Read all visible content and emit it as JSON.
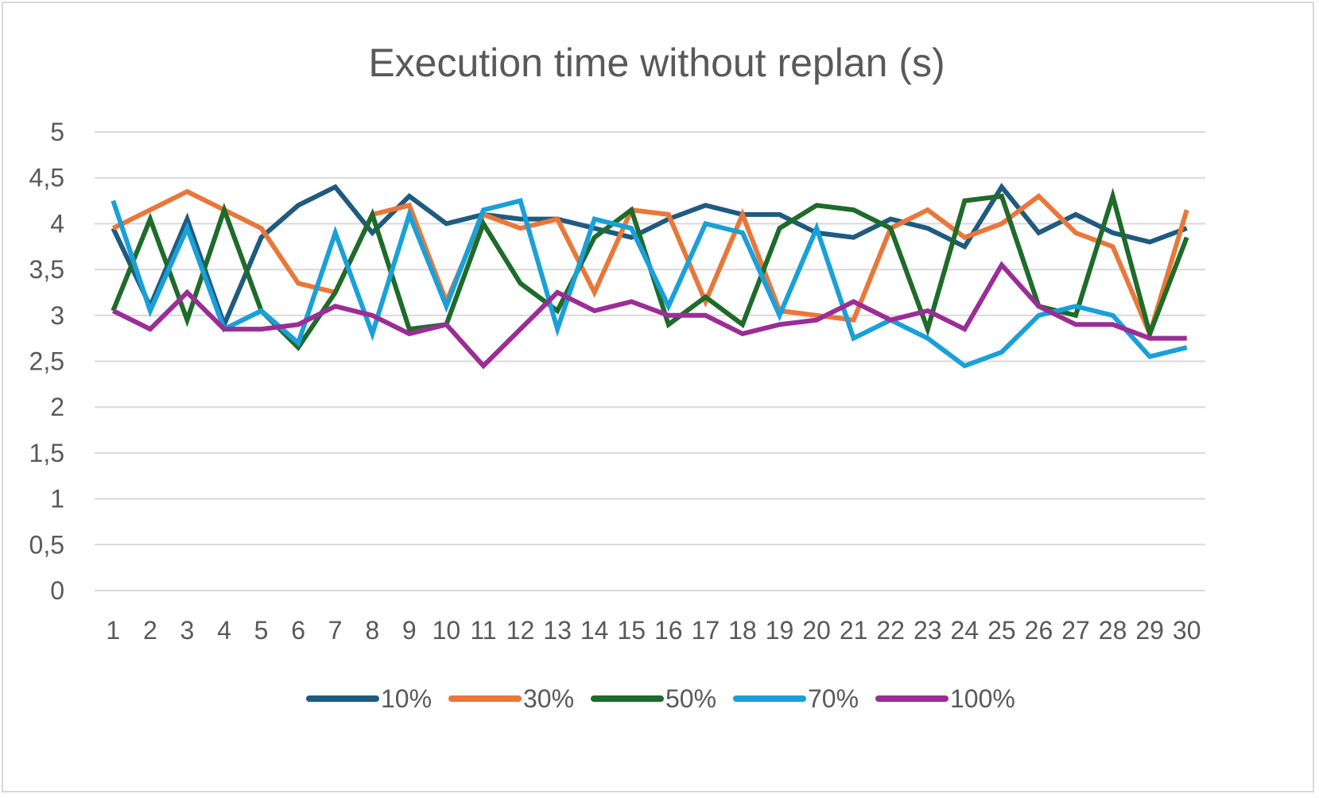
{
  "chart_data": {
    "type": "line",
    "title": "Execution time without replan (s)",
    "xlabel": "",
    "ylabel": "",
    "x": [
      "1",
      "2",
      "3",
      "4",
      "5",
      "6",
      "7",
      "8",
      "9",
      "10",
      "11",
      "12",
      "13",
      "14",
      "15",
      "16",
      "17",
      "18",
      "19",
      "20",
      "21",
      "22",
      "23",
      "24",
      "25",
      "26",
      "27",
      "28",
      "29",
      "30"
    ],
    "yticks": [
      "0",
      "0,5",
      "1",
      "1,5",
      "2",
      "2,5",
      "3",
      "3,5",
      "4",
      "4,5",
      "5"
    ],
    "ylim": [
      0,
      5
    ],
    "grid": true,
    "legend_position": "bottom",
    "series": [
      {
        "name": "10%",
        "color": "#1f5b80",
        "values": [
          3.95,
          3.1,
          4.05,
          2.9,
          3.85,
          4.2,
          4.4,
          3.9,
          4.3,
          4.0,
          4.1,
          4.05,
          4.05,
          3.95,
          3.85,
          4.05,
          4.2,
          4.1,
          4.1,
          3.9,
          3.85,
          4.05,
          3.95,
          3.75,
          4.4,
          3.9,
          4.1,
          3.9,
          3.8,
          3.95
        ]
      },
      {
        "name": "30%",
        "color": "#e9773a",
        "values": [
          3.95,
          4.15,
          4.35,
          4.15,
          3.95,
          3.35,
          3.25,
          4.1,
          4.2,
          3.15,
          4.1,
          3.95,
          4.05,
          3.25,
          4.15,
          4.1,
          3.15,
          4.1,
          3.05,
          3.0,
          2.95,
          3.95,
          4.15,
          3.85,
          4.0,
          4.3,
          3.9,
          3.75,
          2.8,
          4.15
        ]
      },
      {
        "name": "50%",
        "color": "#1e6b2a",
        "values": [
          3.05,
          4.05,
          2.95,
          4.15,
          3.05,
          2.65,
          3.25,
          4.1,
          2.85,
          2.9,
          4.0,
          3.35,
          3.05,
          3.85,
          4.15,
          2.9,
          3.2,
          2.9,
          3.95,
          4.2,
          4.15,
          3.95,
          2.85,
          4.25,
          4.3,
          3.1,
          3.0,
          4.3,
          2.8,
          3.85
        ]
      },
      {
        "name": "70%",
        "color": "#1aa0d8",
        "values": [
          4.25,
          3.05,
          3.95,
          2.85,
          3.05,
          2.7,
          3.9,
          2.8,
          4.1,
          3.1,
          4.15,
          4.25,
          2.85,
          4.05,
          3.95,
          3.1,
          4.0,
          3.9,
          3.0,
          3.95,
          2.75,
          2.95,
          2.75,
          2.45,
          2.6,
          3.0,
          3.1,
          3.0,
          2.55,
          2.65
        ]
      },
      {
        "name": "100%",
        "color": "#9b2d96",
        "values": [
          3.05,
          2.85,
          3.25,
          2.85,
          2.85,
          2.9,
          3.1,
          3.0,
          2.8,
          2.9,
          2.45,
          2.85,
          3.25,
          3.05,
          3.15,
          3.0,
          3.0,
          2.8,
          2.9,
          2.95,
          3.15,
          2.95,
          3.05,
          2.85,
          3.55,
          3.1,
          2.9,
          2.9,
          2.75,
          2.75
        ]
      }
    ]
  }
}
